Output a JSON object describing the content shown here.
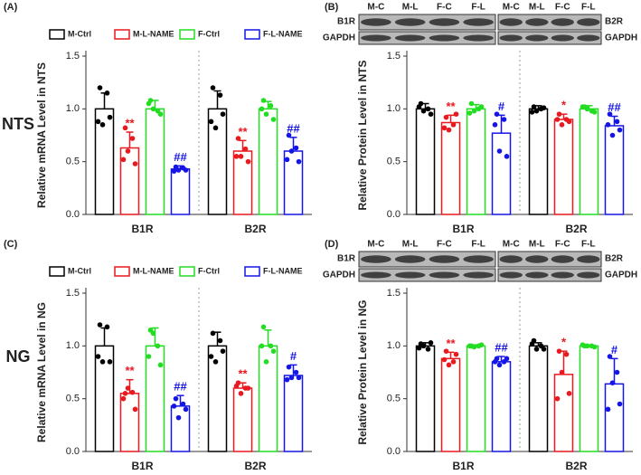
{
  "row_labels": [
    "NTS",
    "NG"
  ],
  "chart_data": [
    {
      "type": "bar",
      "panel": "(A)",
      "ylabel": "Relative mRNA Level in NTS",
      "categories": [
        "B1R",
        "B2R"
      ],
      "ylim": [
        0,
        1.5
      ],
      "yticks": [
        {
          "value": 0,
          "label": "0.0"
        },
        0.5,
        {
          "value": 1,
          "label": "1.0"
        },
        1.5
      ],
      "legend": true,
      "series": [
        {
          "name": "M-Ctrl",
          "color": "#000000",
          "values": [
            1.0,
            1.0
          ],
          "errors": [
            0.15,
            0.17
          ],
          "points": [
            [
              1.2,
              1.15,
              0.85,
              0.92,
              0.88
            ],
            [
              1.2,
              1.13,
              0.82,
              0.95,
              0.88
            ]
          ]
        },
        {
          "name": "M-L-NAME",
          "color": "#e8191f",
          "values": [
            0.63,
            0.6
          ],
          "errors": [
            0.15,
            0.1
          ],
          "points": [
            [
              0.82,
              0.72,
              0.6,
              0.48,
              0.52
            ],
            [
              0.72,
              0.62,
              0.55,
              0.5,
              0.55
            ]
          ],
          "annotations": [
            "**",
            "**"
          ]
        },
        {
          "name": "F-Ctrl",
          "color": "#22dd22",
          "values": [
            1.0,
            1.0
          ],
          "errors": [
            0.08,
            0.07
          ],
          "points": [
            [
              1.08,
              0.98,
              1.0,
              0.95,
              1.05
            ],
            [
              1.08,
              1.03,
              0.95,
              0.9,
              1.0
            ]
          ]
        },
        {
          "name": "F-L-NAME",
          "color": "#1515e6",
          "values": [
            0.43,
            0.6
          ],
          "errors": [
            0.03,
            0.13
          ],
          "points": [
            [
              0.45,
              0.44,
              0.42,
              0.42,
              0.41
            ],
            [
              0.75,
              0.63,
              0.6,
              0.5,
              0.52
            ]
          ],
          "annotations": [
            "##",
            "##"
          ]
        }
      ]
    },
    {
      "type": "bar",
      "panel": "(B)",
      "ylabel": "Relative Protein Level in NTS",
      "categories": [
        "B1R",
        "B2R"
      ],
      "ylim": [
        0,
        1.5
      ],
      "yticks": [
        {
          "value": 0,
          "label": "0.0"
        },
        0.5,
        {
          "value": 1,
          "label": "1.0"
        },
        1.5
      ],
      "legend": false,
      "blot": {
        "lanes": [
          "M-C",
          "M-L",
          "F-C",
          "F-L",
          "M-C",
          "M-L",
          "F-C",
          "F-L"
        ],
        "left_labels": [
          "B1R",
          "GAPDH"
        ],
        "right_labels": [
          "B2R",
          "GAPDH"
        ]
      },
      "series": [
        {
          "color": "#000000",
          "values": [
            1.0,
            1.0
          ],
          "errors": [
            0.05,
            0.03
          ],
          "points": [
            [
              1.05,
              1.0,
              0.98,
              0.95,
              1.02
            ],
            [
              1.02,
              1.0,
              0.98,
              1.01,
              0.97
            ]
          ]
        },
        {
          "color": "#e8191f",
          "values": [
            0.87,
            0.9
          ],
          "errors": [
            0.07,
            0.05
          ],
          "points": [
            [
              0.92,
              0.85,
              0.8,
              0.95,
              0.82
            ],
            [
              0.95,
              0.9,
              0.85,
              0.88,
              0.9
            ]
          ],
          "annotations": [
            "**",
            "*"
          ]
        },
        {
          "color": "#22dd22",
          "values": [
            1.0,
            1.0
          ],
          "errors": [
            0.04,
            0.03
          ],
          "points": [
            [
              1.05,
              1.0,
              0.98,
              1.02,
              0.96
            ],
            [
              1.02,
              0.98,
              1.0,
              0.97,
              1.02
            ]
          ]
        },
        {
          "color": "#1515e6",
          "values": [
            0.77,
            0.84
          ],
          "errors": [
            0.17,
            0.09
          ],
          "points": [
            [
              0.95,
              0.9,
              0.6,
              0.55,
              0.85
            ],
            [
              0.95,
              0.88,
              0.75,
              0.8,
              0.85
            ]
          ],
          "annotations": [
            "#",
            "##"
          ]
        }
      ]
    },
    {
      "type": "bar",
      "panel": "(C)",
      "ylabel": "Relative mRNA Level in NG",
      "categories": [
        "B1R",
        "B2R"
      ],
      "ylim": [
        0,
        1.5
      ],
      "yticks": [
        {
          "value": 0,
          "label": "0.0"
        },
        0.5,
        {
          "value": 1,
          "label": "1.0"
        },
        1.5
      ],
      "legend": true,
      "series": [
        {
          "name": "M-Ctrl",
          "color": "#000000",
          "values": [
            1.0,
            1.0
          ],
          "errors": [
            0.17,
            0.13
          ],
          "points": [
            [
              1.2,
              1.18,
              0.85,
              0.85,
              0.9
            ],
            [
              1.12,
              1.05,
              0.85,
              0.95,
              0.9
            ]
          ]
        },
        {
          "name": "M-L-NAME",
          "color": "#e8191f",
          "values": [
            0.55,
            0.6
          ],
          "errors": [
            0.13,
            0.05
          ],
          "points": [
            [
              0.55,
              0.56,
              0.6,
              0.4,
              0.5
            ],
            [
              0.65,
              0.6,
              0.55,
              0.6,
              0.62
            ]
          ],
          "annotations": [
            "**",
            "**"
          ]
        },
        {
          "name": "F-Ctrl",
          "color": "#22dd22",
          "values": [
            1.0,
            1.0
          ],
          "errors": [
            0.17,
            0.15
          ],
          "points": [
            [
              1.15,
              1.0,
              1.12,
              0.82,
              0.9
            ],
            [
              1.18,
              1.0,
              0.85,
              0.95,
              1.0
            ]
          ]
        },
        {
          "name": "F-L-NAME",
          "color": "#1515e6",
          "values": [
            0.43,
            0.72
          ],
          "errors": [
            0.1,
            0.1
          ],
          "points": [
            [
              0.5,
              0.45,
              0.32,
              0.4,
              0.43
            ],
            [
              0.8,
              0.75,
              0.7,
              0.7,
              0.68
            ]
          ],
          "annotations": [
            "##",
            "#"
          ]
        }
      ]
    },
    {
      "type": "bar",
      "panel": "(D)",
      "ylabel": "Relative Protein Level in NG",
      "categories": [
        "B1R",
        "B2R"
      ],
      "ylim": [
        0,
        1.5
      ],
      "yticks": [
        {
          "value": 0,
          "label": "0.0"
        },
        0.5,
        {
          "value": 1,
          "label": "1.0"
        },
        1.5
      ],
      "legend": false,
      "blot": {
        "lanes": [
          "M-C",
          "M-L",
          "F-C",
          "F-L",
          "M-C",
          "M-L",
          "F-C",
          "F-L"
        ],
        "left_labels": [
          "B1R",
          "GAPDH"
        ],
        "right_labels": [
          "B2R",
          "GAPDH"
        ]
      },
      "series": [
        {
          "color": "#000000",
          "values": [
            1.0,
            1.0
          ],
          "errors": [
            0.03,
            0.03
          ],
          "points": [
            [
              1.02,
              0.97,
              1.0,
              1.03,
              0.98
            ],
            [
              1.05,
              1.0,
              0.97,
              0.97,
              1.02
            ]
          ]
        },
        {
          "color": "#e8191f",
          "values": [
            0.88,
            0.73
          ],
          "errors": [
            0.06,
            0.22
          ],
          "points": [
            [
              0.95,
              0.85,
              0.82,
              0.92,
              0.87
            ],
            [
              0.95,
              0.92,
              0.75,
              0.55,
              0.5
            ]
          ],
          "annotations": [
            "**",
            "*"
          ]
        },
        {
          "color": "#22dd22",
          "values": [
            1.0,
            1.0
          ],
          "errors": [
            0.01,
            0.01
          ],
          "points": [
            [
              1.0,
              1.0,
              0.99,
              1.01,
              1.0
            ],
            [
              1.0,
              1.0,
              1.0,
              0.99,
              1.01
            ]
          ]
        },
        {
          "color": "#1515e6",
          "values": [
            0.85,
            0.64
          ],
          "errors": [
            0.05,
            0.24
          ],
          "points": [
            [
              0.88,
              0.85,
              0.82,
              0.88,
              0.85
            ],
            [
              0.9,
              0.75,
              0.65,
              0.45,
              0.4
            ]
          ],
          "annotations": [
            "##",
            "#"
          ]
        }
      ]
    }
  ]
}
